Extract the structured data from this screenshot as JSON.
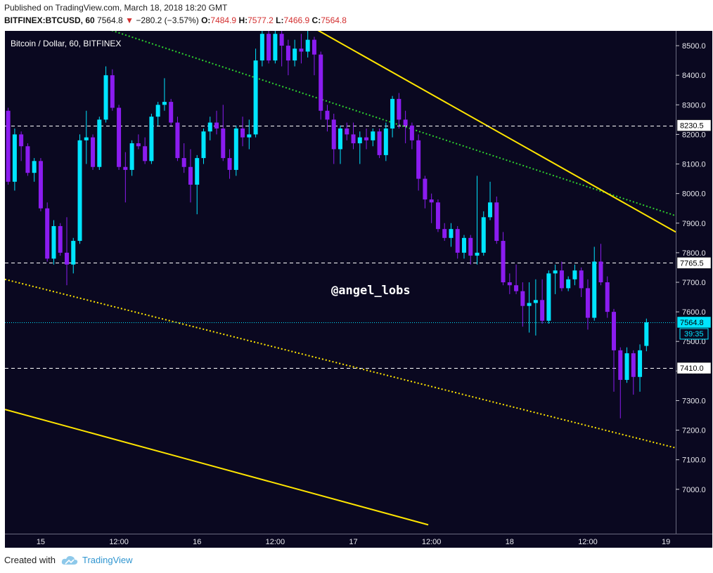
{
  "header": {
    "published": "Published on TradingView.com, March 18, 2018 18:20 GMT",
    "symbol": "BITFINEX:BTCUSD, 60",
    "last": "7564.8",
    "change_arrow": "▼",
    "change": "−280.2 (−3.57%)",
    "o_label": "O:",
    "o": "7484.9",
    "h_label": "H:",
    "h": "7577.2",
    "l_label": "L:",
    "l": "7466.9",
    "c_label": "C:",
    "c": "7564.8"
  },
  "footer": {
    "created_with": "Created with",
    "brand": "TradingView",
    "brand_icon": "cloud-logo-icon"
  },
  "colors": {
    "background": "#0a0820",
    "up": "#00e5ff",
    "down": "#8b1cf0",
    "yellow": "#ffe500",
    "green": "#2ed12e",
    "white": "#ffffff"
  },
  "chart_data": {
    "type": "candlestick",
    "title": "Bitcoin / Dollar, 60, BITFINEX",
    "watermark": "@angel_lobs",
    "ylim": [
      6850,
      8550
    ],
    "y_ticks": [
      7000,
      7100,
      7200,
      7300,
      7400,
      7500,
      7600,
      7700,
      7800,
      7900,
      8000,
      8100,
      8200,
      8300,
      8400,
      8500
    ],
    "y_tick_labels": [
      "7000.0",
      "7100.0",
      "7200.0",
      "7300.0",
      "7400.0",
      "7500.0",
      "7600.0",
      "7700.0",
      "7800.0",
      "7900.0",
      "8000.0",
      "8100.0",
      "8200.0",
      "8300.0",
      "8400.0",
      "8500.0"
    ],
    "x_range_hours": [
      -5.5,
      97.5
    ],
    "x_ticks": [
      {
        "h": 0,
        "label": "15"
      },
      {
        "h": 12,
        "label": "12:00"
      },
      {
        "h": 24,
        "label": "16"
      },
      {
        "h": 36,
        "label": "12:00"
      },
      {
        "h": 48,
        "label": "17"
      },
      {
        "h": 60,
        "label": "12:00"
      },
      {
        "h": 72,
        "label": "18"
      },
      {
        "h": 84,
        "label": "12:00"
      },
      {
        "h": 96,
        "label": "19"
      },
      {
        "h": 108,
        "label": "12:00"
      }
    ],
    "first_candle_hour": -5,
    "candles": [
      [
        8280,
        8290,
        8030,
        8040
      ],
      [
        8040,
        8220,
        8010,
        8200
      ],
      [
        8200,
        8210,
        8110,
        8160
      ],
      [
        8160,
        8170,
        8060,
        8070
      ],
      [
        8070,
        8120,
        8040,
        8110
      ],
      [
        8110,
        8120,
        7940,
        7950
      ],
      [
        7950,
        7970,
        7770,
        7780
      ],
      [
        7780,
        7910,
        7760,
        7890
      ],
      [
        7890,
        7900,
        7790,
        7800
      ],
      [
        7800,
        7920,
        7690,
        7760
      ],
      [
        7760,
        7850,
        7730,
        7840
      ],
      [
        7840,
        8200,
        7830,
        8180
      ],
      [
        8180,
        8280,
        8100,
        8190
      ],
      [
        8190,
        8200,
        8080,
        8090
      ],
      [
        8090,
        8260,
        8080,
        8250
      ],
      [
        8250,
        8430,
        8240,
        8400
      ],
      [
        8400,
        8420,
        8280,
        8290
      ],
      [
        8290,
        8300,
        8080,
        8090
      ],
      [
        8090,
        8140,
        7970,
        8080
      ],
      [
        8080,
        8180,
        8060,
        8170
      ],
      [
        8170,
        8200,
        8150,
        8160
      ],
      [
        8160,
        8190,
        8100,
        8110
      ],
      [
        8110,
        8270,
        8100,
        8260
      ],
      [
        8260,
        8310,
        8230,
        8300
      ],
      [
        8300,
        8390,
        8280,
        8310
      ],
      [
        8310,
        8320,
        8230,
        8240
      ],
      [
        8240,
        8260,
        8110,
        8120
      ],
      [
        8120,
        8170,
        8070,
        8090
      ],
      [
        8090,
        8150,
        7970,
        8030
      ],
      [
        8030,
        8130,
        7930,
        8120
      ],
      [
        8120,
        8220,
        8100,
        8210
      ],
      [
        8210,
        8260,
        8180,
        8240
      ],
      [
        8240,
        8280,
        8200,
        8220
      ],
      [
        8220,
        8300,
        8110,
        8120
      ],
      [
        8120,
        8150,
        8050,
        8080
      ],
      [
        8080,
        8230,
        8060,
        8220
      ],
      [
        8220,
        8260,
        8160,
        8190
      ],
      [
        8190,
        8250,
        8150,
        8200
      ],
      [
        8200,
        8490,
        8190,
        8450
      ],
      [
        8450,
        8560,
        8430,
        8540
      ],
      [
        8540,
        8550,
        8440,
        8450
      ],
      [
        8450,
        8560,
        8440,
        8540
      ],
      [
        8540,
        8550,
        8430,
        8500
      ],
      [
        8500,
        8520,
        8400,
        8450
      ],
      [
        8450,
        8520,
        8430,
        8490
      ],
      [
        8490,
        8540,
        8440,
        8480
      ],
      [
        8480,
        8550,
        8460,
        8520
      ],
      [
        8520,
        8530,
        8400,
        8470
      ],
      [
        8470,
        8480,
        8250,
        8280
      ],
      [
        8280,
        8300,
        8210,
        8250
      ],
      [
        8250,
        8270,
        8100,
        8150
      ],
      [
        8150,
        8230,
        8100,
        8220
      ],
      [
        8220,
        8240,
        8180,
        8200
      ],
      [
        8200,
        8240,
        8150,
        8170
      ],
      [
        8170,
        8210,
        8100,
        8190
      ],
      [
        8190,
        8220,
        8150,
        8180
      ],
      [
        8180,
        8220,
        8160,
        8210
      ],
      [
        8210,
        8220,
        8120,
        8130
      ],
      [
        8130,
        8240,
        8110,
        8220
      ],
      [
        8220,
        8330,
        8190,
        8320
      ],
      [
        8320,
        8340,
        8220,
        8250
      ],
      [
        8250,
        8280,
        8170,
        8230
      ],
      [
        8230,
        8240,
        8150,
        8180
      ],
      [
        8180,
        8200,
        8010,
        8050
      ],
      [
        8050,
        8060,
        7950,
        7980
      ],
      [
        7980,
        8000,
        7900,
        7970
      ],
      [
        7970,
        7980,
        7870,
        7880
      ],
      [
        7880,
        7900,
        7840,
        7850
      ],
      [
        7850,
        7900,
        7820,
        7880
      ],
      [
        7880,
        7890,
        7780,
        7800
      ],
      [
        7800,
        7860,
        7780,
        7850
      ],
      [
        7850,
        7860,
        7760,
        7790
      ],
      [
        7790,
        8060,
        7760,
        7800
      ],
      [
        7800,
        7940,
        7790,
        7920
      ],
      [
        7920,
        8040,
        7910,
        7970
      ],
      [
        7970,
        7990,
        7830,
        7840
      ],
      [
        7840,
        7870,
        7690,
        7700
      ],
      [
        7700,
        7730,
        7660,
        7690
      ],
      [
        7690,
        7760,
        7660,
        7670
      ],
      [
        7670,
        7700,
        7550,
        7620
      ],
      [
        7620,
        7700,
        7530,
        7630
      ],
      [
        7630,
        7710,
        7520,
        7640
      ],
      [
        7640,
        7710,
        7560,
        7570
      ],
      [
        7570,
        7740,
        7560,
        7730
      ],
      [
        7730,
        7760,
        7660,
        7740
      ],
      [
        7740,
        7770,
        7670,
        7680
      ],
      [
        7680,
        7720,
        7670,
        7710
      ],
      [
        7710,
        7760,
        7690,
        7740
      ],
      [
        7740,
        7750,
        7650,
        7680
      ],
      [
        7680,
        7710,
        7540,
        7580
      ],
      [
        7580,
        7820,
        7570,
        7770
      ],
      [
        7770,
        7830,
        7690,
        7700
      ],
      [
        7700,
        7720,
        7580,
        7600
      ],
      [
        7600,
        7610,
        7330,
        7470
      ],
      [
        7470,
        7480,
        7240,
        7370
      ],
      [
        7370,
        7480,
        7360,
        7460
      ],
      [
        7460,
        7470,
        7320,
        7380
      ],
      [
        7380,
        7490,
        7330,
        7470
      ],
      [
        7484.9,
        7577.2,
        7466.9,
        7564.8
      ]
    ],
    "horizontal_levels": [
      {
        "value": 8230.5,
        "label": "8230.5",
        "style": "dashed-white"
      },
      {
        "value": 7765.5,
        "label": "7765.5",
        "style": "dashed-white"
      },
      {
        "value": 7564.8,
        "label": "7564.8",
        "style": "dotted-cyan",
        "countdown": "39:35"
      },
      {
        "value": 7410.0,
        "label": "7410.0",
        "style": "dashed-white"
      }
    ],
    "trendlines": [
      {
        "style": "dotted-green",
        "points": [
          [
            -5.5,
            8670
          ],
          [
            97.5,
            7925
          ]
        ]
      },
      {
        "style": "solid-yellow",
        "points": [
          [
            39.5,
            8590
          ],
          [
            97.5,
            7870
          ]
        ]
      },
      {
        "style": "dotted-yellow",
        "points": [
          [
            -5.5,
            7710
          ],
          [
            97.5,
            7140
          ]
        ]
      },
      {
        "style": "solid-yellow",
        "points": [
          [
            -5.5,
            7270
          ],
          [
            59.5,
            6880
          ]
        ]
      }
    ]
  }
}
